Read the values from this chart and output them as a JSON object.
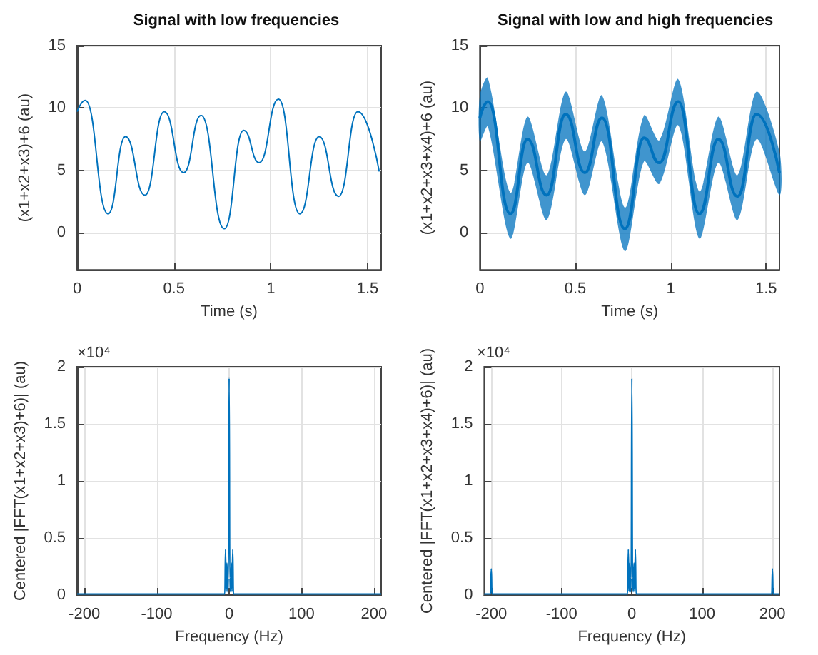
{
  "chart_data": [
    {
      "type": "line",
      "title": "Signal with low frequencies",
      "xlabel": "Time (s)",
      "ylabel": "(x1+x2+x3)+6 (au)",
      "xlim": [
        0,
        1.57
      ],
      "ylim": [
        -3,
        15
      ],
      "xticks": [
        0,
        0.5,
        1,
        1.5
      ],
      "yticks": [
        0,
        5,
        10,
        15
      ],
      "grid": true,
      "series": [
        {
          "color": "#0072bd",
          "x": [
            0,
            0.042,
            0.16,
            0.25,
            0.35,
            0.45,
            0.55,
            0.64,
            0.76,
            0.86,
            0.94,
            1.04,
            1.15,
            1.25,
            1.35,
            1.45,
            1.56
          ],
          "values": [
            9.7,
            10.6,
            1.5,
            7.7,
            3.0,
            9.7,
            4.8,
            9.4,
            0.3,
            8.2,
            5.6,
            10.7,
            1.5,
            7.7,
            2.9,
            9.7,
            4.9
          ]
        }
      ]
    },
    {
      "type": "line",
      "title": "Signal with low and high frequencies",
      "xlabel": "Time (s)",
      "ylabel": "(x1+x2+x3+x4)+6 (au)",
      "xlim": [
        0,
        1.57
      ],
      "ylim": [
        -3,
        15
      ],
      "xticks": [
        0,
        0.5,
        1,
        1.5
      ],
      "yticks": [
        0,
        5,
        10,
        15
      ],
      "grid": true,
      "series": [
        {
          "color": "#0072bd",
          "x": [
            0,
            0.042,
            0.16,
            0.25,
            0.35,
            0.45,
            0.55,
            0.64,
            0.76,
            0.86,
            0.94,
            1.04,
            1.15,
            1.25,
            1.35,
            1.45,
            1.57
          ],
          "values": [
            9.2,
            10.5,
            1.5,
            7.5,
            3.0,
            9.5,
            4.8,
            9.2,
            0.3,
            7.6,
            5.6,
            10.5,
            1.5,
            7.5,
            2.9,
            9.5,
            4.8
          ],
          "upper": [
            11,
            12.4,
            3.2,
            9.3,
            4.6,
            11.3,
            6.5,
            11.0,
            2.0,
            9.4,
            7.4,
            12.3,
            3.3,
            9.3,
            4.6,
            11.3,
            6.5
          ],
          "lower": [
            7.3,
            8.5,
            -0.5,
            5.6,
            1.0,
            7.5,
            3.0,
            7.3,
            -1.5,
            5.7,
            3.9,
            8.6,
            -0.5,
            5.6,
            1.0,
            7.5,
            3.0
          ]
        }
      ]
    },
    {
      "type": "line",
      "xlabel": "Frequency (Hz)",
      "ylabel": "Centered |FFT(x1+x2+x3)+6)| (au)",
      "annotations": [
        "×10⁴"
      ],
      "xlim": [
        -210,
        210
      ],
      "ylim": [
        0,
        2
      ],
      "xticks": [
        -200,
        -100,
        0,
        100,
        200
      ],
      "yticks": [
        0,
        0.5,
        1,
        1.5,
        2
      ],
      "grid": true,
      "series": [
        {
          "color": "#0072bd",
          "x": [
            -210,
            -6,
            -5,
            -4,
            -3,
            -2,
            -1,
            0,
            1,
            2,
            3,
            4,
            5,
            6,
            210
          ],
          "values": [
            0.01,
            0.01,
            0.4,
            0.03,
            0.28,
            0.03,
            0.15,
            1.9,
            0.15,
            0.03,
            0.28,
            0.03,
            0.4,
            0.01,
            0.01
          ]
        }
      ]
    },
    {
      "type": "line",
      "xlabel": "Frequency (Hz)",
      "ylabel": "Centered |FFT(x1+x2+x3+x4)+6)| (au)",
      "annotations": [
        "×10⁴"
      ],
      "xlim": [
        -210,
        210
      ],
      "ylim": [
        0,
        2
      ],
      "xticks": [
        -200,
        -100,
        0,
        100,
        200
      ],
      "yticks": [
        0,
        0.5,
        1,
        1.5,
        2
      ],
      "grid": true,
      "series": [
        {
          "color": "#0072bd",
          "x": [
            -210,
            -201,
            -200,
            -199,
            -6,
            -5,
            -4,
            -3,
            -2,
            -1,
            0,
            1,
            2,
            3,
            4,
            5,
            6,
            199,
            200,
            201,
            210
          ],
          "values": [
            0.01,
            0.01,
            0.23,
            0.01,
            0.01,
            0.4,
            0.03,
            0.28,
            0.03,
            0.15,
            1.9,
            0.15,
            0.03,
            0.28,
            0.03,
            0.4,
            0.01,
            0.01,
            0.23,
            0.01,
            0.01
          ]
        }
      ]
    }
  ]
}
